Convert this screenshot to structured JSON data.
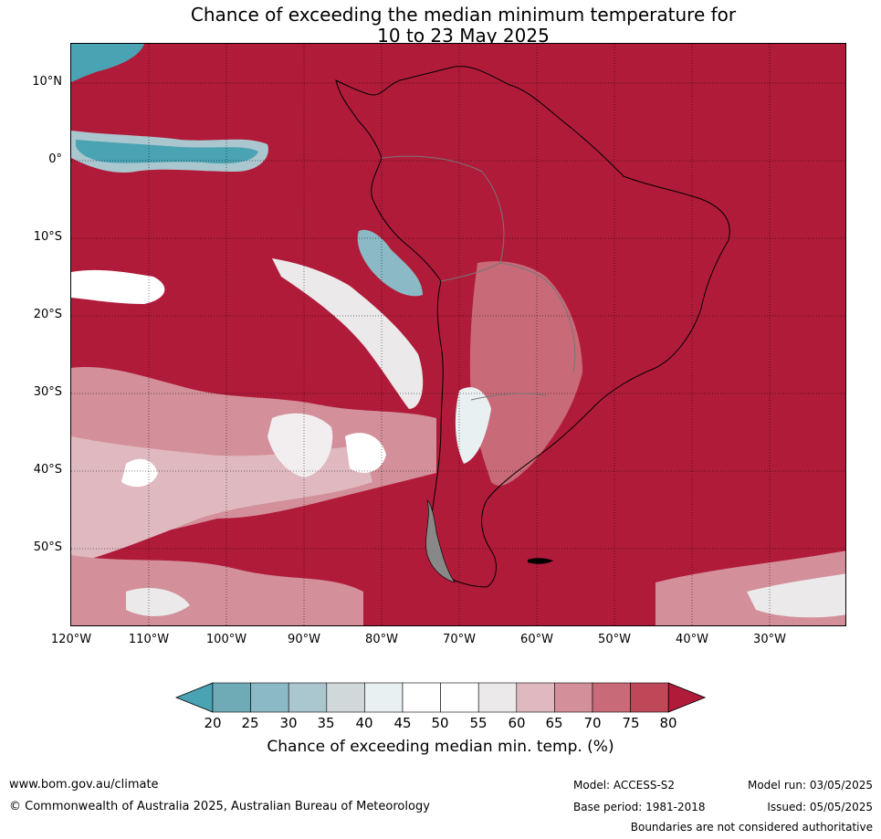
{
  "title": {
    "line1": "Chance of exceeding the median minimum temperature for",
    "line2": "10 to 23 May 2025"
  },
  "map": {
    "lat_labels": [
      "10°N",
      "0°",
      "10°S",
      "20°S",
      "30°S",
      "40°S",
      "50°S"
    ],
    "lon_labels": [
      "120°W",
      "110°W",
      "100°W",
      "90°W",
      "80°W",
      "70°W",
      "60°W",
      "50°W",
      "40°W",
      "30°W"
    ],
    "background_color": "#b01b3a"
  },
  "colorbar": {
    "title": "Chance of exceeding median min. temp. (%)",
    "ticks": [
      "20",
      "25",
      "30",
      "35",
      "40",
      "45",
      "50",
      "55",
      "60",
      "65",
      "70",
      "75",
      "80"
    ],
    "colors": [
      "#4aa3b3",
      "#6fabb7",
      "#8bb9c5",
      "#aac6ce",
      "#d1d8da",
      "#e9f0f2",
      "#ffffff",
      "#ffffff",
      "#ebe9ea",
      "#e0b9c0",
      "#d38f9a",
      "#c86a78",
      "#be4857",
      "#b01b3a"
    ]
  },
  "footer": {
    "website": "www.bom.gov.au/climate",
    "copyright": "© Commonwealth of Australia 2025, Australian Bureau of Meteorology",
    "model": "Model: ACCESS-S2",
    "base_period": "Base period: 1981-2018",
    "model_run": "Model run: 03/05/2025",
    "issued": "Issued: 05/05/2025",
    "boundaries_note": "Boundaries are not considered authoritative"
  }
}
